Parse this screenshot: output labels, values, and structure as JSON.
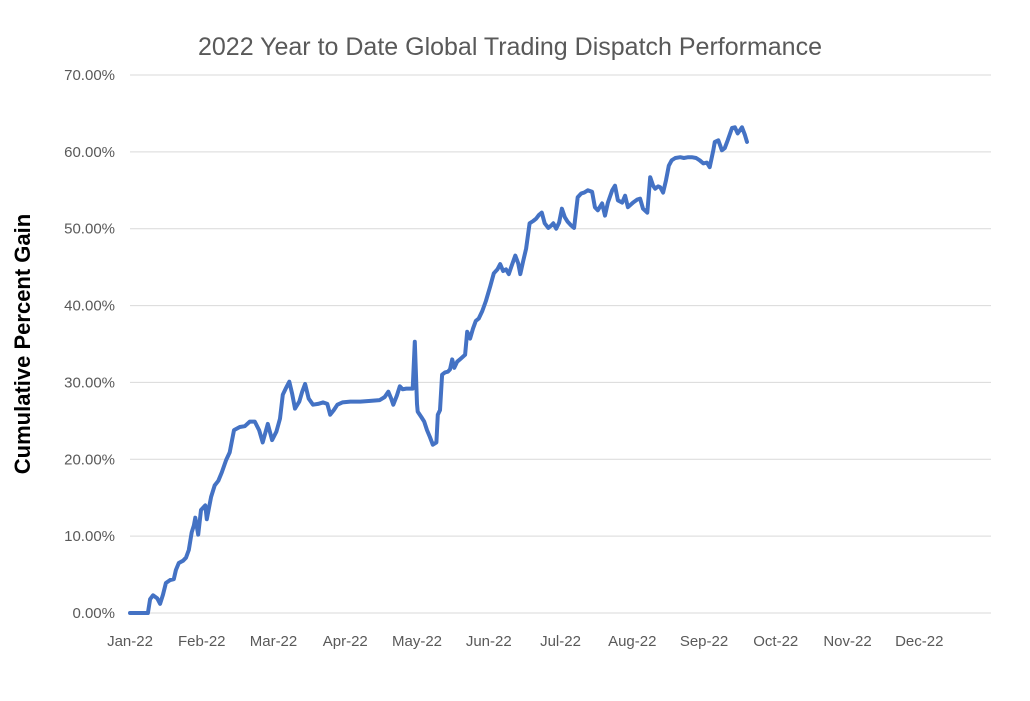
{
  "chart_data": {
    "type": "line",
    "title": "2022 Year to Date Global Trading Dispatch Performance",
    "xlabel": "",
    "ylabel": "Cumulative Percent Gain",
    "x_tick_labels": [
      "Jan-22",
      "Feb-22",
      "Mar-22",
      "Apr-22",
      "May-22",
      "Jun-22",
      "Jul-22",
      "Aug-22",
      "Sep-22",
      "Oct-22",
      "Nov-22",
      "Dec-22"
    ],
    "y_tick_labels": [
      "0.00%",
      "10.00%",
      "20.00%",
      "30.00%",
      "40.00%",
      "50.00%",
      "60.00%",
      "70.00%"
    ],
    "y_tick_values": [
      0,
      10,
      20,
      30,
      40,
      50,
      60,
      70
    ],
    "ylim": [
      0,
      70
    ],
    "xlim_months": [
      0,
      12
    ],
    "grid": "horizontal-only",
    "legend": "none",
    "x_unit": "months since 2022-01-01 (0 = Jan-22, 8.6 = ~Sep 19, 2022)",
    "y_unit": "cumulative percent gain",
    "series": [
      {
        "name": "Cumulative Percent Gain",
        "color": "#4472C4",
        "points": [
          [
            0,
            0
          ],
          [
            0.25,
            0
          ],
          [
            0.28,
            1.8
          ],
          [
            0.32,
            2.3
          ],
          [
            0.38,
            1.9
          ],
          [
            0.42,
            1.2
          ],
          [
            0.46,
            2.4
          ],
          [
            0.5,
            3.9
          ],
          [
            0.56,
            4.3
          ],
          [
            0.61,
            4.4
          ],
          [
            0.64,
            5.6
          ],
          [
            0.68,
            6.5
          ],
          [
            0.74,
            6.8
          ],
          [
            0.78,
            7.2
          ],
          [
            0.82,
            8.2
          ],
          [
            0.86,
            10.5
          ],
          [
            0.89,
            11.4
          ],
          [
            0.91,
            12.4
          ],
          [
            0.95,
            10.2
          ],
          [
            0.99,
            13.4
          ],
          [
            1.05,
            14.0
          ],
          [
            1.07,
            12.2
          ],
          [
            1.13,
            15.1
          ],
          [
            1.18,
            16.6
          ],
          [
            1.23,
            17.2
          ],
          [
            1.28,
            18.3
          ],
          [
            1.34,
            19.9
          ],
          [
            1.39,
            20.9
          ],
          [
            1.45,
            23.8
          ],
          [
            1.53,
            24.2
          ],
          [
            1.6,
            24.3
          ],
          [
            1.67,
            24.9
          ],
          [
            1.74,
            24.9
          ],
          [
            1.8,
            23.8
          ],
          [
            1.85,
            22.2
          ],
          [
            1.92,
            24.6
          ],
          [
            1.98,
            22.5
          ],
          [
            2.04,
            23.6
          ],
          [
            2.09,
            25.3
          ],
          [
            2.13,
            28.4
          ],
          [
            2.17,
            29.2
          ],
          [
            2.22,
            30.1
          ],
          [
            2.26,
            28.5
          ],
          [
            2.3,
            26.6
          ],
          [
            2.36,
            27.5
          ],
          [
            2.4,
            28.8
          ],
          [
            2.44,
            29.8
          ],
          [
            2.49,
            27.9
          ],
          [
            2.55,
            27.1
          ],
          [
            2.62,
            27.2
          ],
          [
            2.69,
            27.4
          ],
          [
            2.75,
            27.2
          ],
          [
            2.79,
            25.8
          ],
          [
            2.84,
            26.4
          ],
          [
            2.89,
            27.1
          ],
          [
            2.96,
            27.4
          ],
          [
            3.07,
            27.5
          ],
          [
            3.21,
            27.5
          ],
          [
            3.35,
            27.6
          ],
          [
            3.48,
            27.7
          ],
          [
            3.55,
            28.1
          ],
          [
            3.6,
            28.8
          ],
          [
            3.64,
            27.9
          ],
          [
            3.67,
            27.1
          ],
          [
            3.72,
            28.3
          ],
          [
            3.76,
            29.5
          ],
          [
            3.8,
            29.1
          ],
          [
            3.85,
            29.2
          ],
          [
            3.9,
            29.2
          ],
          [
            3.94,
            29.2
          ],
          [
            3.97,
            35.3
          ],
          [
            4.0,
            27.2
          ],
          [
            4.01,
            26.2
          ],
          [
            4.06,
            25.5
          ],
          [
            4.1,
            24.9
          ],
          [
            4.14,
            23.8
          ],
          [
            4.18,
            22.9
          ],
          [
            4.22,
            21.9
          ],
          [
            4.27,
            22.2
          ],
          [
            4.29,
            25.8
          ],
          [
            4.32,
            26.4
          ],
          [
            4.35,
            31.0
          ],
          [
            4.39,
            31.3
          ],
          [
            4.43,
            31.4
          ],
          [
            4.46,
            31.7
          ],
          [
            4.49,
            33.0
          ],
          [
            4.52,
            31.9
          ],
          [
            4.56,
            32.7
          ],
          [
            4.61,
            33.1
          ],
          [
            4.67,
            33.6
          ],
          [
            4.7,
            36.6
          ],
          [
            4.74,
            35.7
          ],
          [
            4.78,
            37.0
          ],
          [
            4.82,
            38.0
          ],
          [
            4.86,
            38.3
          ],
          [
            4.91,
            39.3
          ],
          [
            4.96,
            40.6
          ],
          [
            5.02,
            42.5
          ],
          [
            5.07,
            44.2
          ],
          [
            5.12,
            44.7
          ],
          [
            5.16,
            45.4
          ],
          [
            5.2,
            44.5
          ],
          [
            5.24,
            44.7
          ],
          [
            5.28,
            44.1
          ],
          [
            5.32,
            45.2
          ],
          [
            5.37,
            46.5
          ],
          [
            5.41,
            45.5
          ],
          [
            5.44,
            44.1
          ],
          [
            5.48,
            45.8
          ],
          [
            5.52,
            47.4
          ],
          [
            5.57,
            50.7
          ],
          [
            5.62,
            51.0
          ],
          [
            5.66,
            51.3
          ],
          [
            5.7,
            51.8
          ],
          [
            5.74,
            52.1
          ],
          [
            5.78,
            50.7
          ],
          [
            5.83,
            50.1
          ],
          [
            5.87,
            50.4
          ],
          [
            5.9,
            50.7
          ],
          [
            5.94,
            50.0
          ],
          [
            5.98,
            50.8
          ],
          [
            6.02,
            52.6
          ],
          [
            6.06,
            51.5
          ],
          [
            6.1,
            50.9
          ],
          [
            6.15,
            50.4
          ],
          [
            6.19,
            50.1
          ],
          [
            6.24,
            54.1
          ],
          [
            6.29,
            54.6
          ],
          [
            6.33,
            54.7
          ],
          [
            6.38,
            55.0
          ],
          [
            6.44,
            54.8
          ],
          [
            6.48,
            52.8
          ],
          [
            6.52,
            52.4
          ],
          [
            6.58,
            53.3
          ],
          [
            6.62,
            51.7
          ],
          [
            6.66,
            53.4
          ],
          [
            6.72,
            55.0
          ],
          [
            6.76,
            55.6
          ],
          [
            6.8,
            53.7
          ],
          [
            6.86,
            53.4
          ],
          [
            6.9,
            54.3
          ],
          [
            6.94,
            52.8
          ],
          [
            7.01,
            53.4
          ],
          [
            7.07,
            53.8
          ],
          [
            7.11,
            53.9
          ],
          [
            7.15,
            52.6
          ],
          [
            7.21,
            52.1
          ],
          [
            7.25,
            56.7
          ],
          [
            7.29,
            55.6
          ],
          [
            7.32,
            55.2
          ],
          [
            7.36,
            55.5
          ],
          [
            7.39,
            55.4
          ],
          [
            7.43,
            54.7
          ],
          [
            7.47,
            56.3
          ],
          [
            7.51,
            58.2
          ],
          [
            7.55,
            58.9
          ],
          [
            7.6,
            59.2
          ],
          [
            7.67,
            59.3
          ],
          [
            7.72,
            59.2
          ],
          [
            7.78,
            59.3
          ],
          [
            7.83,
            59.3
          ],
          [
            7.89,
            59.2
          ],
          [
            7.94,
            58.9
          ],
          [
            7.99,
            58.5
          ],
          [
            8.04,
            58.6
          ],
          [
            8.08,
            58.0
          ],
          [
            8.13,
            60.2
          ],
          [
            8.15,
            61.3
          ],
          [
            8.2,
            61.5
          ],
          [
            8.25,
            60.2
          ],
          [
            8.29,
            60.5
          ],
          [
            8.33,
            61.5
          ],
          [
            8.39,
            63.1
          ],
          [
            8.43,
            63.2
          ],
          [
            8.47,
            62.4
          ],
          [
            8.53,
            63.2
          ],
          [
            8.57,
            62.2
          ],
          [
            8.6,
            61.3
          ]
        ]
      }
    ]
  },
  "colors": {
    "background": "#ffffff",
    "title": "#595959",
    "tick_labels": "#595959",
    "gridline": "#D9D9D9",
    "series_line": "#4472C4",
    "y_axis_title": "#000000"
  }
}
